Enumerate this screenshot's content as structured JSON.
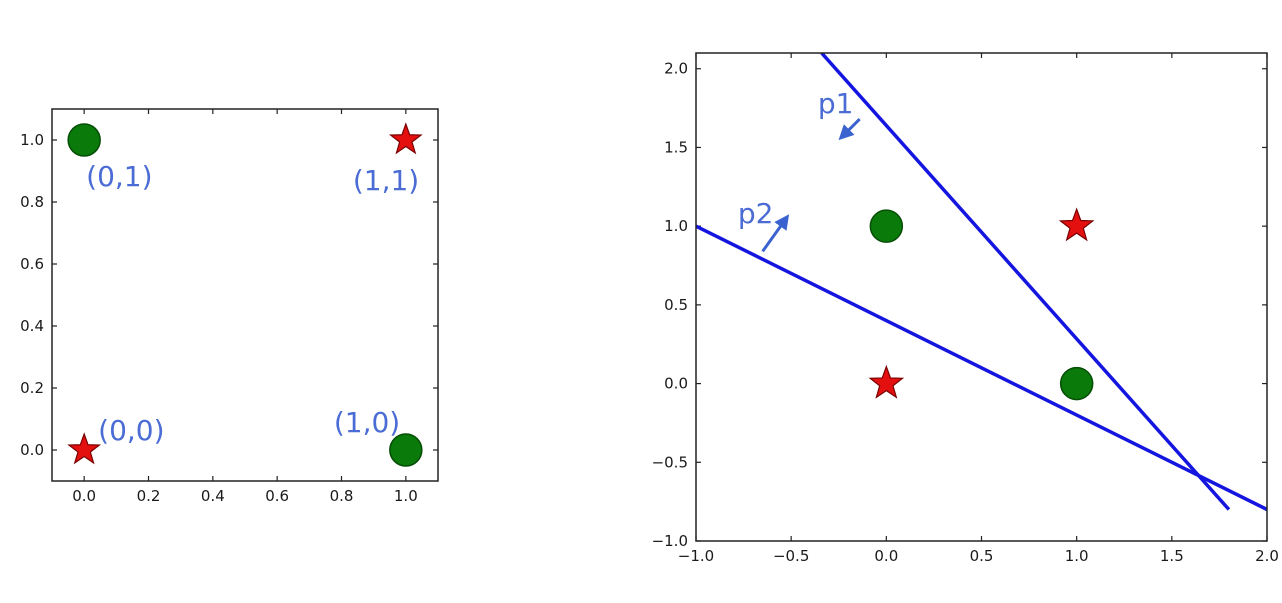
{
  "colors": {
    "circle_fill": "#0a7a0a",
    "circle_edge": "#064d06",
    "star_fill": "#e41010",
    "star_edge": "#7a0000",
    "line": "#1515e0",
    "annotation": "#4a6cd4",
    "arrow": "#3a63d0"
  },
  "chart_data": [
    {
      "type": "scatter",
      "xlim": [
        -0.1,
        1.1
      ],
      "ylim": [
        -0.1,
        1.1
      ],
      "xticks": [
        "0.0",
        "0.2",
        "0.4",
        "0.6",
        "0.8",
        "1.0"
      ],
      "xtick_values": [
        0.0,
        0.2,
        0.4,
        0.6,
        0.8,
        1.0
      ],
      "yticks": [
        "0.0",
        "0.2",
        "0.4",
        "0.6",
        "0.8",
        "1.0"
      ],
      "ytick_values": [
        0.0,
        0.2,
        0.4,
        0.6,
        0.8,
        1.0
      ],
      "grid": false,
      "points": [
        {
          "x": 0,
          "y": 1,
          "marker": "circle"
        },
        {
          "x": 1,
          "y": 0,
          "marker": "circle"
        },
        {
          "x": 0,
          "y": 0,
          "marker": "star"
        },
        {
          "x": 1,
          "y": 1,
          "marker": "star"
        }
      ],
      "annotations": [
        {
          "text": "(0,1)",
          "x": 0.0,
          "y": 1.0
        },
        {
          "text": "(1,1)",
          "x": 1.0,
          "y": 1.0
        },
        {
          "text": "(0,0)",
          "x": 0.0,
          "y": 0.0
        },
        {
          "text": "(1,0)",
          "x": 1.0,
          "y": 0.0
        }
      ]
    },
    {
      "type": "scatter",
      "xlim": [
        -1.0,
        2.0
      ],
      "ylim": [
        -1.0,
        2.1
      ],
      "xticks": [
        "−1.0",
        "−0.5",
        "0.0",
        "0.5",
        "1.0",
        "1.5",
        "2.0"
      ],
      "xtick_values": [
        -1.0,
        -0.5,
        0.0,
        0.5,
        1.0,
        1.5,
        2.0
      ],
      "yticks": [
        "−1.0",
        "−0.5",
        "0.0",
        "0.5",
        "1.0",
        "1.5",
        "2.0"
      ],
      "ytick_values": [
        -1.0,
        -0.5,
        0.0,
        0.5,
        1.0,
        1.5,
        2.0
      ],
      "grid": false,
      "points": [
        {
          "x": 0,
          "y": 1,
          "marker": "circle"
        },
        {
          "x": 1,
          "y": 0,
          "marker": "circle"
        },
        {
          "x": 0,
          "y": 0,
          "marker": "star"
        },
        {
          "x": 1,
          "y": 1,
          "marker": "star"
        }
      ],
      "lines": [
        {
          "name": "p1",
          "x": [
            -0.34,
            1.8
          ],
          "y": [
            2.1,
            -0.8
          ]
        },
        {
          "name": "p2",
          "x": [
            -1.0,
            2.0
          ],
          "y": [
            1.0,
            -0.8
          ]
        }
      ],
      "annotations": [
        {
          "text": "p1",
          "x": -0.36,
          "y": 1.72,
          "arrow_from": [
            -0.14,
            1.68
          ],
          "arrow_to": [
            -0.24,
            1.56
          ]
        },
        {
          "text": "p2",
          "x": -0.78,
          "y": 1.02,
          "arrow_from": [
            -0.65,
            0.84
          ],
          "arrow_to": [
            -0.52,
            1.06
          ]
        }
      ]
    }
  ]
}
